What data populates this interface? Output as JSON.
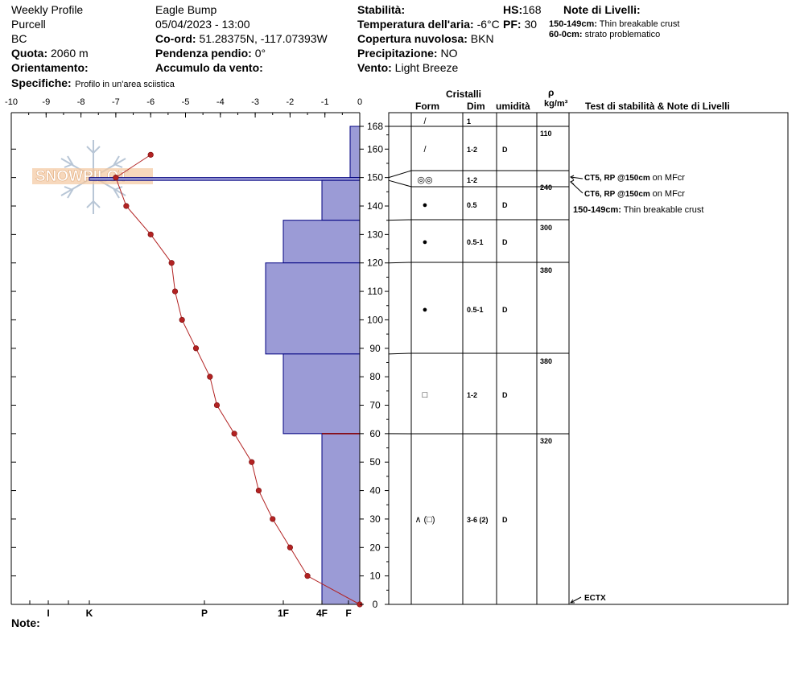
{
  "header": {
    "profile_type": "Weekly Profile",
    "range": "Purcell",
    "region": "BC",
    "quota_label": "Quota:",
    "quota_value": "2060 m",
    "orient_label": "Orientamento:",
    "orient_value": "",
    "spec_label": "Specifiche:",
    "spec_value": "Profilo in un'area sciistica",
    "location": "Eagle Bump",
    "datetime": "05/04/2023 - 13:00",
    "coord_label": "Co-ord:",
    "coord_value": "51.28375N, -117.07393W",
    "slope_label": "Pendenza pendio:",
    "slope_value": "0°",
    "wind_acc_label": "Accumulo da vento:",
    "wind_acc_value": "",
    "stab_label": "Stabilità:",
    "stab_value": "",
    "temp_label": "Temperatura dell'aria:",
    "temp_value": "-6°C",
    "cloud_label": "Copertura nuvolosa:",
    "cloud_value": "BKN",
    "precip_label": "Precipitazione:",
    "precip_value": "NO",
    "wind_label": "Vento:",
    "wind_value": "Light Breeze",
    "hs_label": "HS:",
    "hs_value": "168",
    "pf_label": "PF:",
    "pf_value": "30",
    "notes_title": "Note di Livelli:",
    "notes": [
      {
        "range": "150-149cm:",
        "text": "Thin breakable crust"
      },
      {
        "range": "60-0cm:",
        "text": "strato problematico"
      }
    ],
    "note_label": "Note:"
  },
  "logo_text": "SNOWPILOT",
  "table_headers": {
    "cristalli": "Cristalli",
    "form": "Form",
    "dim": "Dim",
    "umidita": "umidità",
    "rho": "ρ",
    "density_unit": "kg/m³",
    "tests": "Test di stabilità & Note di Livelli"
  },
  "chart_data": {
    "type": "snow_profile",
    "x_temp_ticks": [
      "-10",
      "-9",
      "-8",
      "-7",
      "-6",
      "-5",
      "-4",
      "-3",
      "-2",
      "-1",
      "0"
    ],
    "temp_xlim": [
      -10,
      0
    ],
    "height_ylim": [
      0,
      168
    ],
    "height_ticks": [
      "168",
      "160",
      "150",
      "140",
      "130",
      "120",
      "110",
      "100",
      "90",
      "80",
      "70",
      "60",
      "50",
      "40",
      "30",
      "20",
      "10",
      "0"
    ],
    "hardness_labels": [
      "I",
      "K",
      "P",
      "1F",
      "4F",
      "F"
    ],
    "temperature_profile": [
      {
        "h": 158,
        "t": -6.0
      },
      {
        "h": 150,
        "t": -7.0
      },
      {
        "h": 140,
        "t": -6.7
      },
      {
        "h": 130,
        "t": -6.0
      },
      {
        "h": 120,
        "t": -5.4
      },
      {
        "h": 110,
        "t": -5.3
      },
      {
        "h": 100,
        "t": -5.1
      },
      {
        "h": 90,
        "t": -4.7
      },
      {
        "h": 80,
        "t": -4.3
      },
      {
        "h": 70,
        "t": -4.1
      },
      {
        "h": 60,
        "t": -3.6
      },
      {
        "h": 50,
        "t": -3.1
      },
      {
        "h": 40,
        "t": -2.9
      },
      {
        "h": 30,
        "t": -2.5
      },
      {
        "h": 20,
        "t": -2.0
      },
      {
        "h": 10,
        "t": -1.5
      },
      {
        "h": 0,
        "t": 0
      }
    ],
    "hardness_profile": [
      {
        "top": 168,
        "bottom": 150,
        "hardness": "F"
      },
      {
        "top": 150,
        "bottom": 149,
        "hardness": "K"
      },
      {
        "top": 149,
        "bottom": 135,
        "hardness": "4F"
      },
      {
        "top": 135,
        "bottom": 120,
        "hardness": "1F"
      },
      {
        "top": 120,
        "bottom": 88,
        "hardness": "1F-P"
      },
      {
        "top": 88,
        "bottom": 60,
        "hardness": "1F"
      },
      {
        "top": 60,
        "bottom": 0,
        "hardness": "4F"
      }
    ],
    "layers": [
      {
        "top": 168,
        "bottom": 150,
        "form": "/",
        "dim": "1",
        "moisture": "",
        "density": ""
      },
      {
        "top": 168,
        "bottom": 150,
        "form": "/",
        "dim": "1-2",
        "moisture": "D",
        "density": "110"
      },
      {
        "top": 150,
        "bottom": 149,
        "form": "◎◎",
        "dim": "1-2",
        "moisture": "",
        "density": ""
      },
      {
        "top": 149,
        "bottom": 135,
        "form": "●",
        "dim": "0.5",
        "moisture": "D",
        "density": "240"
      },
      {
        "top": 135,
        "bottom": 120,
        "form": "●",
        "dim": "0.5-1",
        "moisture": "D",
        "density": "300"
      },
      {
        "top": 120,
        "bottom": 88,
        "form": "●",
        "dim": "0.5-1",
        "moisture": "D",
        "density": "380"
      },
      {
        "top": 88,
        "bottom": 60,
        "form": "□",
        "dim": "1-2",
        "moisture": "D",
        "density": "380"
      },
      {
        "top": 60,
        "bottom": 0,
        "form": "∧ (□)",
        "dim": "3-6 (2)",
        "moisture": "D",
        "density": "320"
      }
    ],
    "tests": [
      {
        "text": "CT5, RP @150cm",
        "suffix": "on MFcr"
      },
      {
        "text": "CT6, RP @150cm",
        "suffix": "on MFcr"
      }
    ],
    "layer_note": {
      "range": "150-149cm:",
      "text": "Thin breakable crust"
    },
    "ectx": "ECTX",
    "colors": {
      "bar_fill": "#9b9bd6",
      "bar_edge": "#000080",
      "temp": "#b22222",
      "crust": "#8b0000"
    }
  }
}
